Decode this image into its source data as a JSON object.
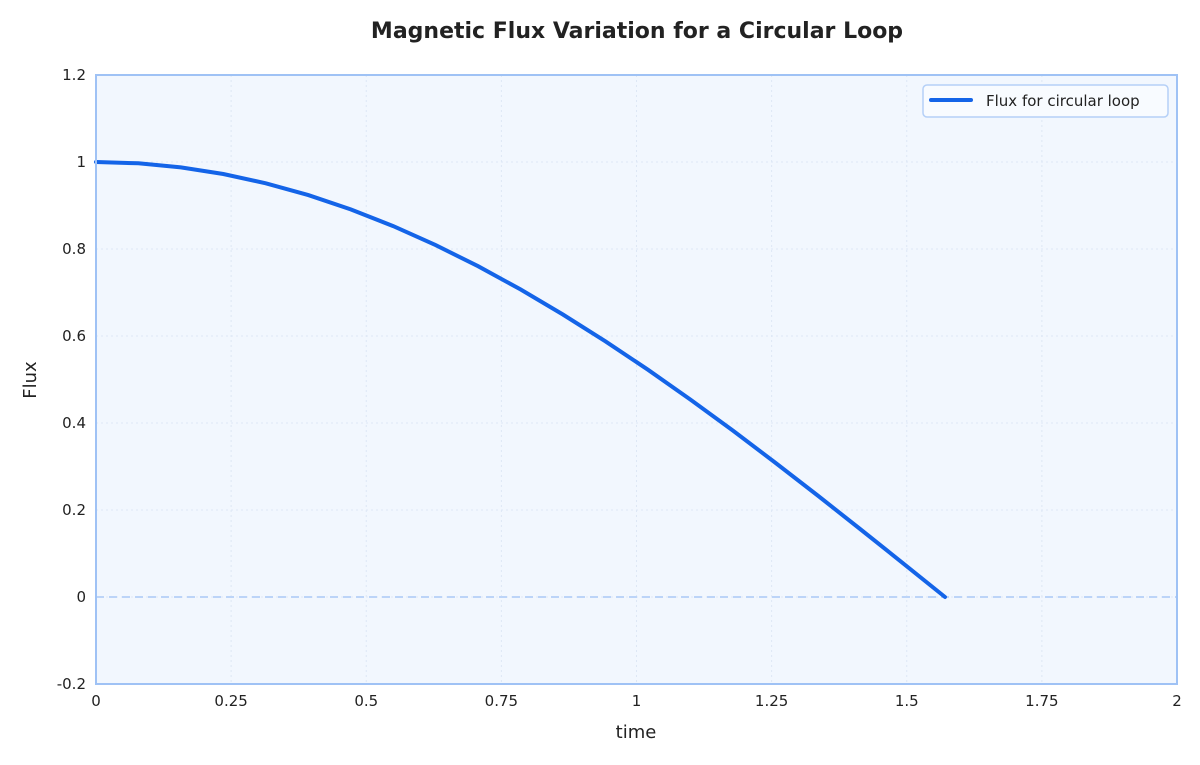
{
  "chart_data": {
    "type": "line",
    "title": "Magnetic Flux Variation for a Circular Loop",
    "xlabel": "time",
    "ylabel": "Flux",
    "xlim": [
      0,
      2
    ],
    "ylim": [
      -0.2,
      1.2
    ],
    "xticks": [
      "0",
      "0.25",
      "0.5",
      "0.75",
      "1",
      "1.25",
      "1.5",
      "1.75",
      "2"
    ],
    "xtick_values": [
      0,
      0.25,
      0.5,
      0.75,
      1,
      1.25,
      1.5,
      1.75,
      2
    ],
    "yticks": [
      "-0.2",
      "0",
      "0.2",
      "0.4",
      "0.6",
      "0.8",
      "1",
      "1.2"
    ],
    "ytick_values": [
      -0.2,
      0,
      0.2,
      0.4,
      0.6,
      0.8,
      1,
      1.2
    ],
    "grid": true,
    "legend_placement": "top-right",
    "reference_line": {
      "y": 0,
      "style": "dashed",
      "color": "#bcd4f8"
    },
    "colors": {
      "line": "#1464e8",
      "plot_bg": "#f2f7fe",
      "frame": "#9fc2f5"
    },
    "series": [
      {
        "name": "Flux for circular loop",
        "x": [
          0,
          0.0785,
          0.1571,
          0.2356,
          0.3142,
          0.3927,
          0.4712,
          0.5498,
          0.6283,
          0.7069,
          0.7854,
          0.8639,
          0.9425,
          1.021,
          1.0996,
          1.1781,
          1.2566,
          1.3352,
          1.4137,
          1.4923,
          1.5708
        ],
        "y": [
          1,
          0.9969,
          0.9877,
          0.9724,
          0.9511,
          0.9239,
          0.891,
          0.8526,
          0.809,
          0.7604,
          0.7071,
          0.6494,
          0.5878,
          0.5225,
          0.454,
          0.3827,
          0.309,
          0.2334,
          0.1564,
          0.0785,
          0
        ]
      }
    ]
  }
}
